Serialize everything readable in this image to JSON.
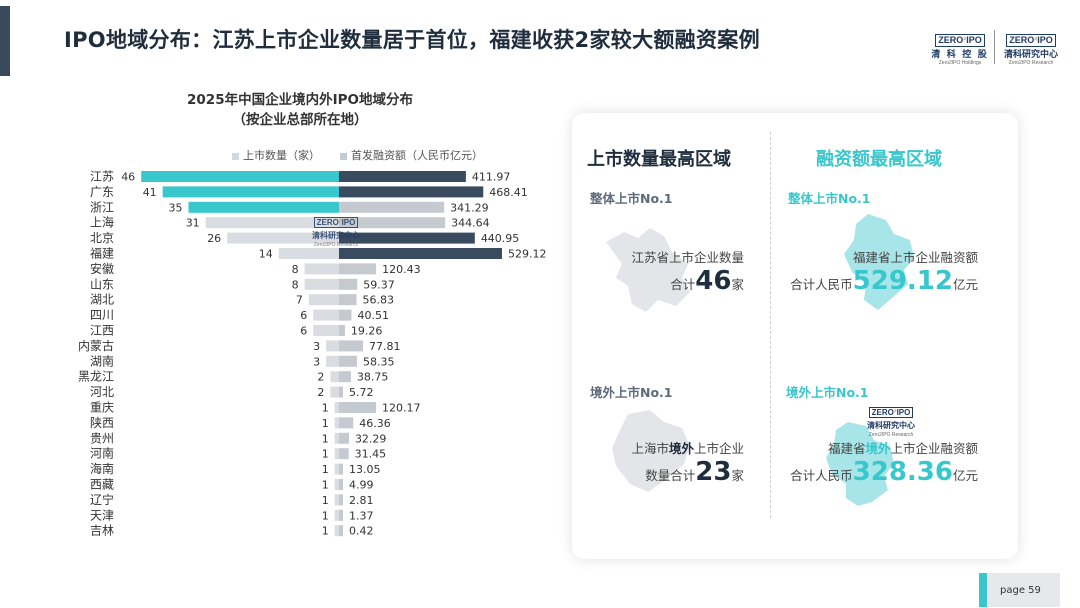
{
  "header": {
    "title": "IPO地域分布：江苏上市企业数量居于首位，福建收获2家较大额融资案例",
    "logo1": {
      "box_a": "ZERO",
      "box_b": "IPO",
      "cn": "清 科 控 股",
      "en": "Zero2IPO Holdings"
    },
    "logo2": {
      "box_a": "ZERO",
      "box_b": "IPO",
      "cn": "清科研究中心",
      "en": "Zero2IPO Research"
    }
  },
  "chart_data": {
    "type": "bar",
    "title": "2025年中国企业境内外IPO地域分布",
    "subtitle": "（按企业总部所在地）",
    "legend_placement": "top",
    "series": [
      {
        "name": "上市数量（家）",
        "values": [
          46,
          41,
          35,
          31,
          26,
          14,
          8,
          8,
          7,
          6,
          6,
          3,
          3,
          2,
          2,
          1,
          1,
          1,
          1,
          1,
          1,
          1,
          1,
          1
        ]
      },
      {
        "name": "首发融资额（人民币亿元）",
        "values": [
          411.97,
          468.41,
          341.29,
          344.64,
          440.95,
          529.12,
          120.43,
          59.37,
          56.83,
          40.51,
          19.26,
          77.81,
          58.35,
          38.75,
          5.72,
          120.17,
          46.36,
          32.29,
          31.45,
          13.05,
          4.99,
          2.81,
          1.37,
          0.42
        ]
      }
    ],
    "categories": [
      "江苏",
      "广东",
      "浙江",
      "上海",
      "北京",
      "福建",
      "安徽",
      "山东",
      "湖北",
      "四川",
      "江西",
      "内蒙古",
      "湖南",
      "黑龙江",
      "河北",
      "重庆",
      "陕西",
      "贵州",
      "河南",
      "海南",
      "西藏",
      "辽宁",
      "天津",
      "吉林"
    ],
    "count_labels": [
      "46",
      "41",
      "35",
      "31",
      "26",
      "14",
      "8",
      "8",
      "7",
      "6",
      "6",
      "3",
      "3",
      "2",
      "2",
      "1",
      "1",
      "1",
      "1",
      "1",
      "1",
      "1",
      "1",
      "1"
    ],
    "amount_labels": [
      "411.97",
      "468.41",
      "341.29",
      "344.64",
      "440.95",
      "529.12",
      "120.43",
      "59.37",
      "56.83",
      "40.51",
      "19.26",
      "77.81",
      "58.35",
      "38.75",
      "5.72",
      "120.17",
      "46.36",
      "32.29",
      "31.45",
      "13.05",
      "4.99",
      "2.81",
      "1.37",
      "0.42"
    ],
    "highlight_count_top": 3,
    "highlight_amount_top": 4,
    "colors": {
      "count_highlight": "#37c7cd",
      "count_normal": "#d9dce1",
      "amount_highlight": "#3a4a5f",
      "amount_normal": "#c5c9d0"
    }
  },
  "chart_watermark": {
    "box_a": "ZERO",
    "box_b": "IPO",
    "cn": "清科研究中心",
    "en": "Zero2IPO Research"
  },
  "panel": {
    "left_head": "上市数量最高区域",
    "right_head": "融资额最高区域",
    "q1": {
      "sub": "整体上市No.1",
      "line1": "江苏省上市企业数量",
      "pre": "合计",
      "num": "46",
      "suf": "家"
    },
    "q2": {
      "sub": "整体上市No.1",
      "line1": "福建省上市企业融资额",
      "pre": "合计人民币",
      "num": "529.12",
      "suf": "亿元"
    },
    "q3": {
      "sub": "境外上市No.1",
      "line1_a": "上海市",
      "line1_b": "境外",
      "line1_c": "上市企业",
      "pre": "数量合计",
      "num": "23",
      "suf": "家"
    },
    "q4": {
      "sub": "境外上市No.1",
      "line1_a": "福建省",
      "line1_b": "境外",
      "line1_c": "上市企业融资额",
      "pre": "合计人民币",
      "num": "328.36",
      "suf": "亿元"
    },
    "watermark": {
      "box_a": "ZERO",
      "box_b": "IPO",
      "cn": "清科研究中心",
      "en": "Zero2IPO Research"
    },
    "colors": {
      "dark_head": "#1f2d3d",
      "teal": "#37c7cd",
      "sub_grey": "#5d6b7a",
      "map_grey": "#e3e5e8",
      "map_teal": "#a8e5e8"
    }
  },
  "footer": {
    "page_label": "page 59"
  }
}
